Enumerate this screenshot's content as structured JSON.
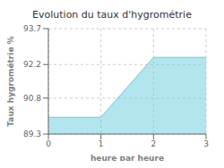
{
  "chart_data": {
    "type": "area",
    "title": "Evolution du taux d'hygrométrie",
    "xlabel": "heure par heure",
    "ylabel": "Taux hygrométrie %",
    "x": [
      0,
      1,
      2,
      3
    ],
    "values": [
      90.0,
      90.0,
      92.5,
      92.5
    ],
    "xlim": [
      0,
      3
    ],
    "ylim": [
      89.3,
      93.7
    ],
    "xticks": [
      0,
      1,
      2,
      3
    ],
    "yticks": [
      89.3,
      90.8,
      92.2,
      93.7
    ],
    "color": "#66ccdd",
    "grid": true
  }
}
